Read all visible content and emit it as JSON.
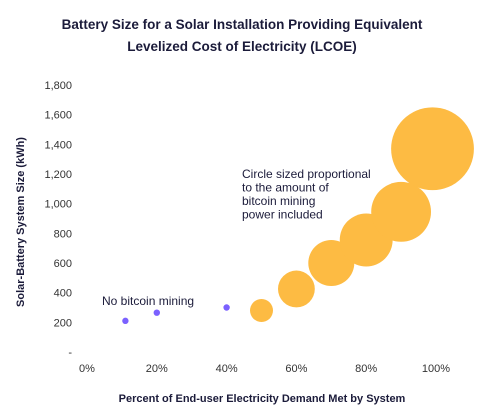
{
  "chart_data": {
    "type": "scatter",
    "title_line1": "Battery Size for a Solar Installation Providing Equivalent",
    "title_line2": "Levelized Cost of Electricity (LCOE)",
    "xlabel": "Percent of End-user Electricity Demand Met by System",
    "ylabel": "Solar-Battery System Size (kWh)",
    "xlim": [
      0,
      100
    ],
    "ylim": [
      0,
      1800
    ],
    "x_ticks": [
      "0%",
      "20%",
      "40%",
      "60%",
      "80%",
      "100%"
    ],
    "x_tick_values": [
      0,
      20,
      40,
      60,
      80,
      100
    ],
    "y_ticks": [
      "-",
      "200",
      "400",
      "600",
      "800",
      "1,000",
      "1,200",
      "1,400",
      "1,600",
      "1,800"
    ],
    "y_tick_values": [
      0,
      200,
      400,
      600,
      800,
      1000,
      1200,
      1400,
      1600,
      1800
    ],
    "grid": false,
    "series": [
      {
        "name": "No bitcoin mining",
        "color": "#7b61ff",
        "points": [
          {
            "x": 11,
            "y": 210
          },
          {
            "x": 20,
            "y": 265
          },
          {
            "x": 40,
            "y": 300
          }
        ]
      },
      {
        "color": "#fdbb43",
        "points": [
          {
            "x": 50,
            "y": 280,
            "size": 1
          },
          {
            "x": 60,
            "y": 425,
            "size": 1.6
          },
          {
            "x": 70,
            "y": 600,
            "size": 2.0
          },
          {
            "x": 80,
            "y": 755,
            "size": 2.3
          },
          {
            "x": 90,
            "y": 945,
            "size": 2.6
          },
          {
            "x": 99,
            "y": 1370,
            "size": 3.6
          }
        ]
      }
    ],
    "annotations": {
      "no_mining": "No bitcoin mining",
      "circle_note": [
        "Circle sized proportional",
        "to the amount of",
        "bitcoin mining",
        "power included"
      ]
    }
  }
}
